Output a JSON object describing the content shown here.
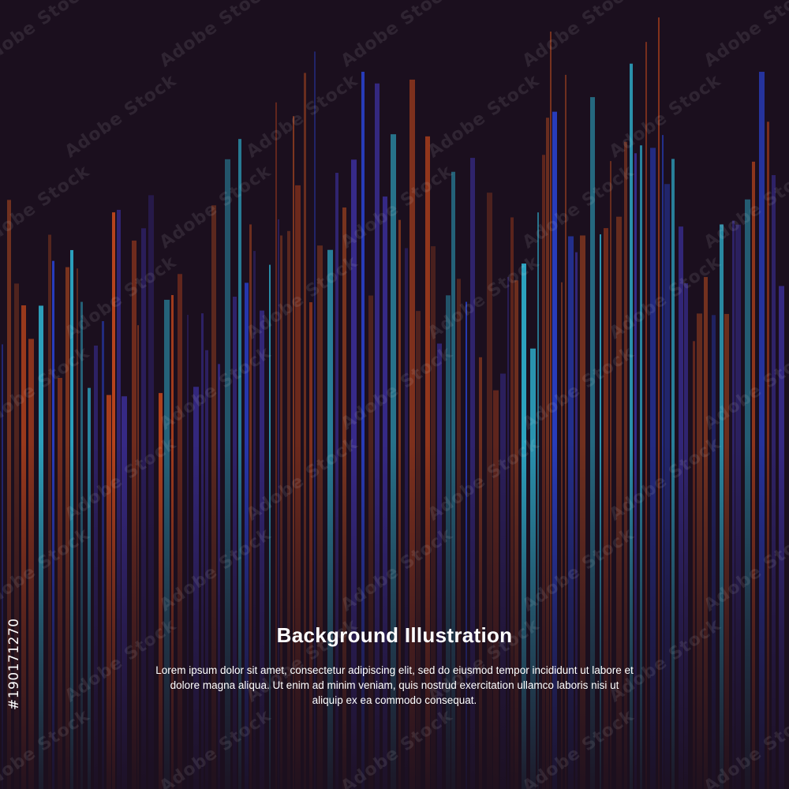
{
  "heading": {
    "title": "Background Illustration"
  },
  "description": {
    "text": "Lorem ipsum dolor sit amet, consectetur adipiscing elit, sed do eiusmod tempor incididunt ut labore et dolore magna aliqua. Ut enim ad minim veniam, quis nostrud exercitation ullamco laboris nisi ut aliquip ex ea commodo consequat."
  },
  "stock": {
    "id": "#190171270",
    "watermark": "Adobe Stock"
  },
  "colors": {
    "background": "#1b0f1e",
    "orange": "#c8491c",
    "rust": "#8a3a1f",
    "blue": "#2a44d6",
    "indigo": "#3b2f9a",
    "teal": "#2fb7d6",
    "text": "#ffffff"
  }
}
